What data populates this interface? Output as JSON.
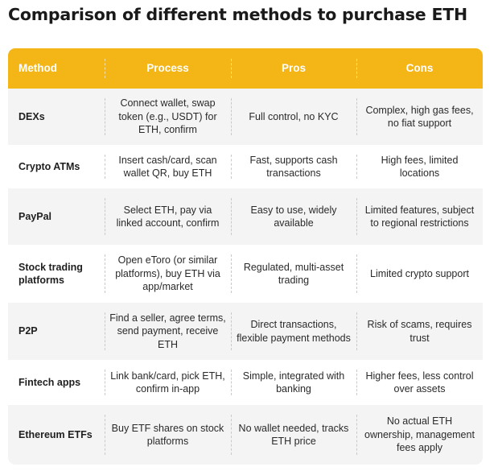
{
  "title": "Comparison of different methods to purchase ETH",
  "table": {
    "headers": [
      "Method",
      "Process",
      "Pros",
      "Cons"
    ],
    "rows": [
      {
        "method": "DEXs",
        "process": "Connect wallet, swap token (e.g., USDT) for ETH, confirm",
        "pros": "Full control, no KYC",
        "cons": "Complex, high gas fees, no fiat support"
      },
      {
        "method": "Crypto ATMs",
        "process": "Insert cash/card, scan wallet QR, buy ETH",
        "pros": "Fast, supports cash transactions",
        "cons": "High fees, limited locations"
      },
      {
        "method": "PayPal",
        "process": "Select ETH, pay via linked account, confirm",
        "pros": "Easy to use, widely available",
        "cons": "Limited features, subject to regional restrictions"
      },
      {
        "method": "Stock trading platforms",
        "process": "Open eToro (or similar platforms), buy ETH via app/market",
        "pros": "Regulated, multi-asset trading",
        "cons": "Limited crypto support"
      },
      {
        "method": "P2P",
        "process": "Find a seller, agree terms, send payment, receive ETH",
        "pros": "Direct transactions, flexible payment methods",
        "cons": "Risk of scams, requires trust"
      },
      {
        "method": "Fintech apps",
        "process": "Link bank/card, pick ETH, confirm in-app",
        "pros": "Simple, integrated with banking",
        "cons": "Higher fees, less control over assets"
      },
      {
        "method": "Ethereum ETFs",
        "process": "Buy ETF shares on stock platforms",
        "pros": "No wallet needed, tracks ETH price",
        "cons": "No actual ETH ownership, management fees apply"
      }
    ]
  },
  "colors": {
    "header_bg": "#f4b616",
    "row_shade": "#f4f4f4",
    "row_plain": "#ffffff"
  }
}
